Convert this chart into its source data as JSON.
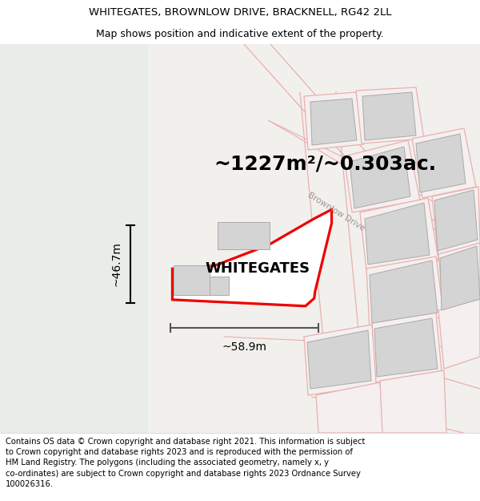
{
  "title_line1": "WHITEGATES, BROWNLOW DRIVE, BRACKNELL, RG42 2LL",
  "title_line2": "Map shows position and indicative extent of the property.",
  "area_text": "~1227m²/~0.303ac.",
  "property_name": "WHITEGATES",
  "width_label": "~58.9m",
  "height_label": "~46.7m",
  "road_label": "Brownlow Drive",
  "footer_text": "Contains OS data © Crown copyright and database right 2021. This information is subject to Crown copyright and database rights 2023 and is reproduced with the permission of HM Land Registry. The polygons (including the associated geometry, namely x, y co-ordinates) are subject to Crown copyright and database rights 2023 Ordnance Survey 100026316.",
  "bg_left_color": "#e8ede8",
  "bg_right_color": "#f2f0ec",
  "main_plot_color": "#ee0000",
  "other_plots_color": "#e8b0b0",
  "building_fill": "#d4d4d4",
  "title_fontsize": 9.5,
  "subtitle_fontsize": 9,
  "area_fontsize": 18,
  "property_fontsize": 13,
  "dim_fontsize": 10,
  "footer_fontsize": 7.2,
  "road_label_fontsize": 7.5
}
